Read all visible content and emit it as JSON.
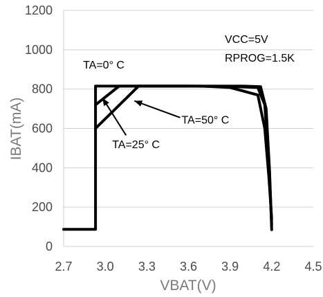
{
  "chart_data": {
    "type": "line",
    "xlabel": "VBAT(V)",
    "ylabel": "IBAT(mA)",
    "xlim": [
      2.7,
      4.5
    ],
    "ylim": [
      0,
      1200
    ],
    "x_ticks": [
      "2.7",
      "3.0",
      "3.3",
      "3.6",
      "3.9",
      "4.2",
      "4.5"
    ],
    "y_ticks": [
      "0",
      "200",
      "400",
      "600",
      "800",
      "1000",
      "1200"
    ],
    "grid": "y-major",
    "conditions": [
      "VCC=5V",
      "RPROG=1.5K"
    ],
    "series": [
      {
        "name": "TA=0°C",
        "points": [
          [
            2.7,
            87
          ],
          [
            2.93,
            87
          ],
          [
            2.93,
            815
          ],
          [
            3.6,
            815
          ],
          [
            4.0,
            815
          ],
          [
            4.12,
            812
          ],
          [
            4.16,
            700
          ],
          [
            4.185,
            380
          ],
          [
            4.2,
            85
          ]
        ]
      },
      {
        "name": "TA=25°C",
        "points": [
          [
            2.93,
            720
          ],
          [
            3.1,
            815
          ],
          [
            3.6,
            815
          ],
          [
            3.95,
            812
          ],
          [
            4.1,
            808
          ],
          [
            4.15,
            720
          ],
          [
            4.18,
            430
          ],
          [
            4.2,
            110
          ]
        ]
      },
      {
        "name": "TA=50°C",
        "points": [
          [
            2.93,
            600
          ],
          [
            3.24,
            815
          ],
          [
            3.7,
            815
          ],
          [
            3.9,
            808
          ],
          [
            4.1,
            770
          ],
          [
            4.15,
            600
          ],
          [
            4.18,
            350
          ],
          [
            4.2,
            140
          ]
        ]
      }
    ],
    "annotations": [
      {
        "text": "TA=0°  C",
        "x": 2.84,
        "y": 905
      },
      {
        "text": "TA=25°  C",
        "x": 3.05,
        "y": 500
      },
      {
        "text": "TA=50°  C",
        "x": 3.55,
        "y": 625
      }
    ]
  }
}
